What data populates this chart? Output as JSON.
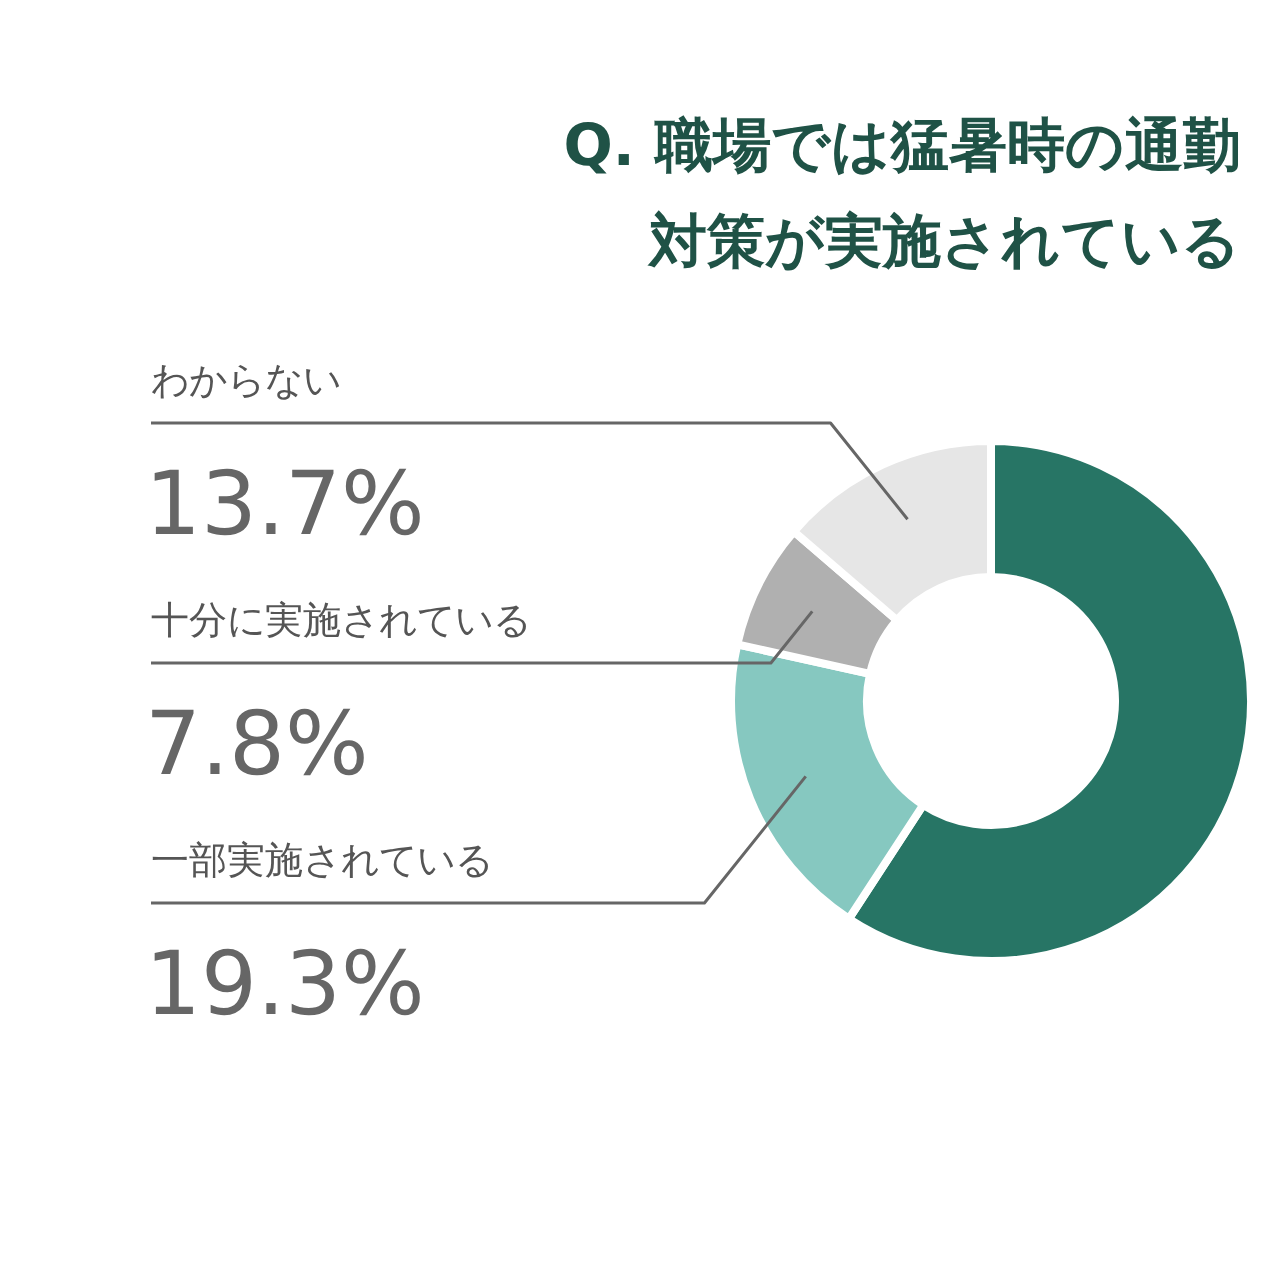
{
  "chart_data": {
    "type": "donut",
    "title": "Q. 職場では猛暑時の通勤対策が実施されている",
    "categories": [
      null,
      "一部実施されている",
      "十分に実施されている",
      "わからない"
    ],
    "values": [
      59.2,
      19.3,
      7.8,
      13.7
    ],
    "colors": [
      "#277565",
      "#86c8c0",
      "#b0b0b0",
      "#e6e6e6"
    ],
    "value_labels": [
      null,
      "19.3%",
      "7.8%",
      "13.7%"
    ]
  }
}
